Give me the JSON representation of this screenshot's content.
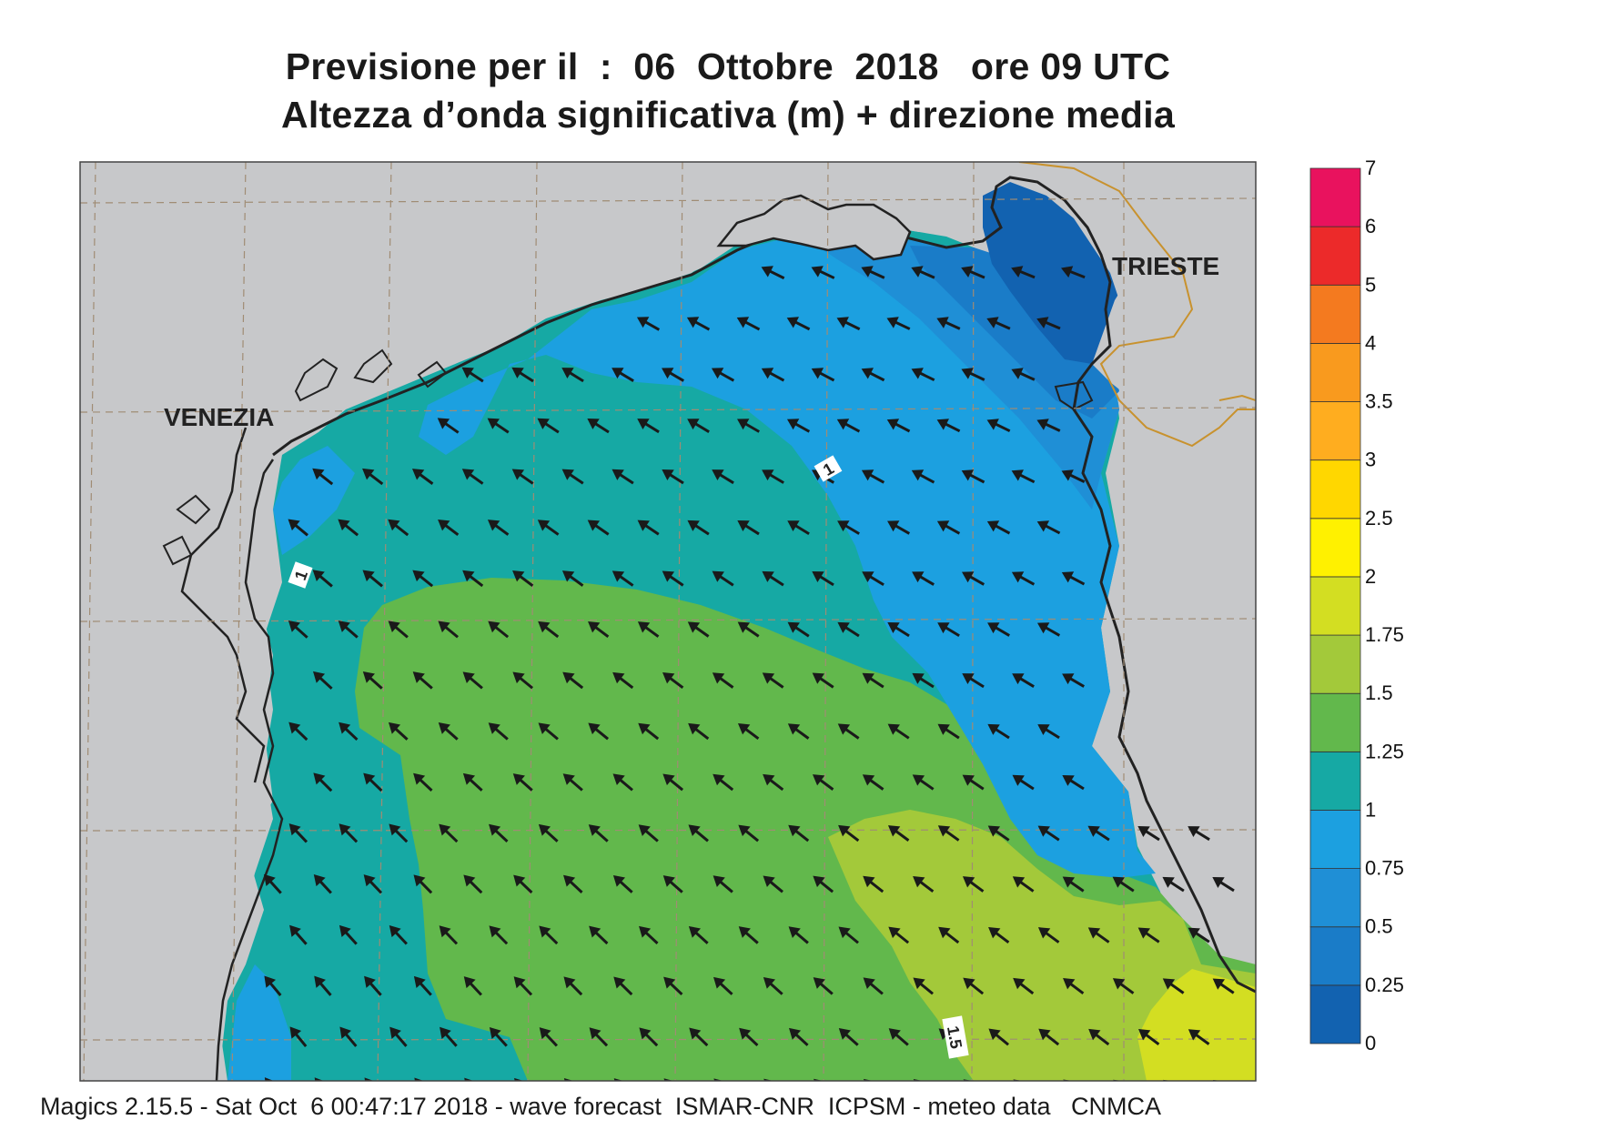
{
  "title": {
    "line1": "Previsione per il  :  06  Ottobre  2018   ore 09 UTC",
    "line2": "Altezza d’onda significativa (m) + direzione media"
  },
  "labels": {
    "city_west": "VENEZIA",
    "city_east": "TRIESTE",
    "contour_1a": "1",
    "contour_1b": "1",
    "contour_15": "1.5"
  },
  "colorbar": {
    "ticks": [
      "0",
      "0.25",
      "0.5",
      "0.75",
      "1",
      "1.25",
      "1.5",
      "1.75",
      "2",
      "2.5",
      "3",
      "3.5",
      "4",
      "5",
      "6",
      "7"
    ],
    "colors": [
      "#1262b0",
      "#1a7cc8",
      "#1f8fd6",
      "#1ca0e0",
      "#16a9a4",
      "#62b84c",
      "#a3c93a",
      "#d3de22",
      "#fff100",
      "#ffd700",
      "#ffad1f",
      "#f99a1e",
      "#f47a1f",
      "#ec2a2a",
      "#e9125e"
    ]
  },
  "legend_colors": {
    "land": "#c7c8ca",
    "coast": "#222222",
    "border": "#c8922e",
    "grid": "#a08c74"
  },
  "arrow_direction": "towards north-west",
  "footer": "Magics 2.15.5 - Sat Oct  6 00:47:17 2018 - wave forecast  ISMAR-CNR  ICPSM - meteo data   CNMCA"
}
